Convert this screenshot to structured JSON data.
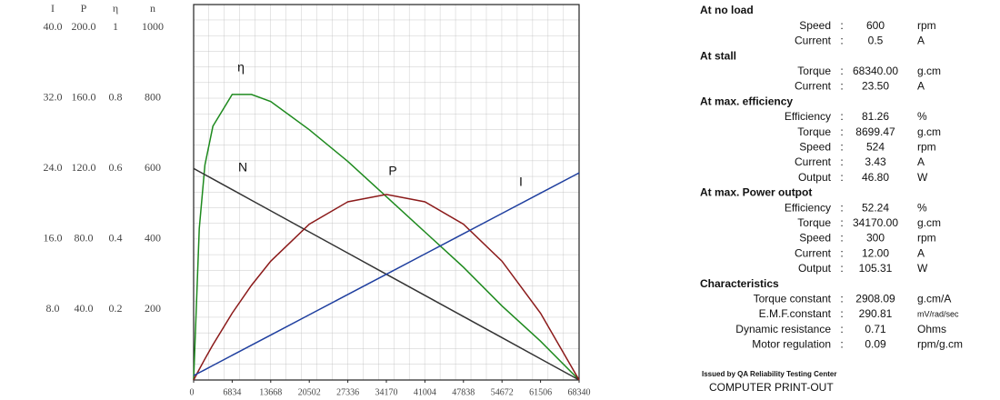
{
  "chart_data": {
    "type": "line",
    "x": [
      0,
      1000,
      2000,
      3417,
      6834,
      10251,
      13668,
      20502,
      27336,
      34170,
      41004,
      47838,
      54672,
      61506,
      68340
    ],
    "xlim": [
      0,
      68340
    ],
    "xticks": [
      0,
      6834,
      13668,
      20502,
      27336,
      34170,
      41004,
      47838,
      54672,
      61506,
      68340
    ],
    "yaxes": [
      {
        "name": "I",
        "ylim": [
          0,
          42.6
        ],
        "yticks": [
          {
            "value": 8,
            "label": "8.0"
          },
          {
            "value": 16,
            "label": "16.0"
          },
          {
            "value": 24,
            "label": "24.0"
          },
          {
            "value": 32,
            "label": "32.0"
          },
          {
            "value": 40,
            "label": "40.0"
          }
        ]
      },
      {
        "name": "P",
        "ylim": [
          0,
          213
        ],
        "yticks": [
          {
            "value": 40,
            "label": "40.0"
          },
          {
            "value": 80,
            "label": "80.0"
          },
          {
            "value": 120,
            "label": "120.0"
          },
          {
            "value": 160,
            "label": "160.0"
          },
          {
            "value": 200,
            "label": "200.0"
          }
        ]
      },
      {
        "name": "η",
        "ylim": [
          0,
          1.065
        ],
        "yticks": [
          0.2,
          0.4,
          0.6,
          0.8,
          1
        ]
      },
      {
        "name": "n",
        "ylim": [
          0,
          1065
        ],
        "yticks": [
          200,
          400,
          600,
          800,
          1000
        ]
      }
    ],
    "series": [
      {
        "name": "η",
        "color": "#1e8a1e",
        "axis": 2,
        "values": [
          0,
          0.43,
          0.61,
          0.72,
          0.81,
          0.81,
          0.79,
          0.71,
          0.62,
          0.52,
          0.42,
          0.32,
          0.21,
          0.11,
          0
        ]
      },
      {
        "name": "N",
        "color": "#333333",
        "axis": 3,
        "values": [
          600,
          591.2,
          582.4,
          570,
          540,
          510,
          480,
          420,
          360,
          300,
          240,
          180,
          120,
          60,
          0
        ]
      },
      {
        "name": "P",
        "color": "#8b1a1a",
        "axis": 1,
        "values": [
          0,
          6.07,
          11.96,
          20.0,
          37.9,
          53.7,
          67.4,
          88.4,
          101.1,
          105.3,
          101.1,
          88.4,
          67.4,
          37.9,
          0
        ]
      },
      {
        "name": "I",
        "color": "#1f3f9f",
        "axis": 0,
        "values": [
          0.5,
          0.84,
          1.17,
          1.65,
          2.8,
          3.95,
          5.1,
          7.4,
          9.7,
          12.0,
          14.3,
          16.6,
          18.9,
          21.2,
          23.5
        ]
      }
    ],
    "grid": true
  },
  "specs": {
    "sections": [
      {
        "title": "At no load",
        "rows": [
          [
            "Speed",
            ":",
            "600",
            "rpm"
          ],
          [
            "Current",
            ":",
            "0.5",
            "A"
          ]
        ]
      },
      {
        "title": "At stall",
        "rows": [
          [
            "Torque",
            ":",
            "68340.00",
            "g.cm"
          ],
          [
            "Current",
            ":",
            "23.50",
            "A"
          ]
        ]
      },
      {
        "title": "At max. efficiency",
        "rows": [
          [
            "Efficiency",
            ":",
            "81.26",
            "%"
          ],
          [
            "Torque",
            ":",
            "8699.47",
            "g.cm"
          ],
          [
            "Speed",
            ":",
            "524",
            "rpm"
          ],
          [
            "Current",
            ":",
            "3.43",
            "A"
          ],
          [
            "Output",
            ":",
            "46.80",
            "W"
          ]
        ]
      },
      {
        "title": "At max. Power outpot",
        "rows": [
          [
            "Efficiency",
            ":",
            "52.24",
            "%"
          ],
          [
            "Torque",
            ":",
            "34170.00",
            "g.cm"
          ],
          [
            "Speed",
            ":",
            "300",
            "rpm"
          ],
          [
            "Current",
            ":",
            "12.00",
            "A"
          ],
          [
            "Output",
            ":",
            "105.31",
            "W"
          ]
        ]
      },
      {
        "title": "Characteristics",
        "rows": [
          [
            "Torque constant",
            ":",
            "2908.09",
            "g.cm/A"
          ],
          [
            "E.M.F.constant",
            ":",
            "290.81",
            "mV/rad/sec"
          ],
          [
            "Dynamic resistance",
            ":",
            "0.71",
            "Ohms"
          ],
          [
            "Motor regulation",
            ":",
            "0.09",
            "rpm/g.cm"
          ]
        ]
      }
    ],
    "issuer": "Issued by QA Reliability Testing Center",
    "footer": "COMPUTER PRINT-OUT"
  }
}
